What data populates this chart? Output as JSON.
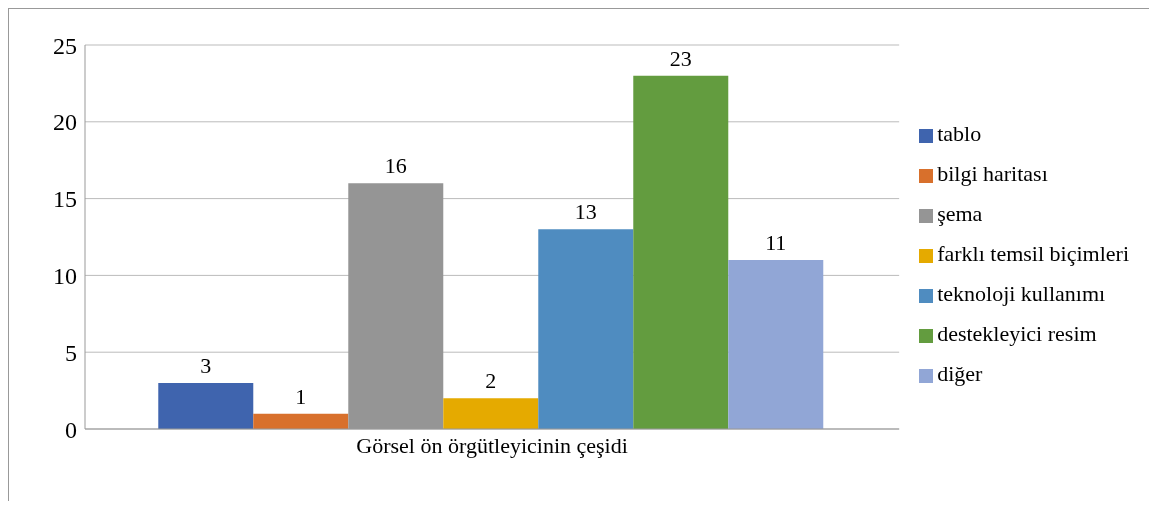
{
  "chart_data": {
    "type": "bar",
    "categories": [
      "Görsel ön örgütleyicinin çeşidi"
    ],
    "series": [
      {
        "name": "tablo",
        "color": "#3f64ae",
        "values": [
          3
        ]
      },
      {
        "name": "bilgi haritası",
        "color": "#d8702c",
        "values": [
          1
        ]
      },
      {
        "name": "şema",
        "color": "#959595",
        "values": [
          16
        ]
      },
      {
        "name": "farklı temsil biçimleri",
        "color": "#e5aa00",
        "values": [
          2
        ]
      },
      {
        "name": "teknoloji kullanımı",
        "color": "#4f8cc0",
        "values": [
          13
        ]
      },
      {
        "name": "destekleyici resim",
        "color": "#639c3f",
        "values": [
          23
        ]
      },
      {
        "name": "diğer",
        "color": "#91a6d6",
        "values": [
          11
        ]
      }
    ],
    "ylim": [
      0,
      25
    ],
    "yticks": [
      0,
      5,
      10,
      15,
      20,
      25
    ],
    "grid": "y",
    "legend": "right",
    "data_labels": true
  }
}
